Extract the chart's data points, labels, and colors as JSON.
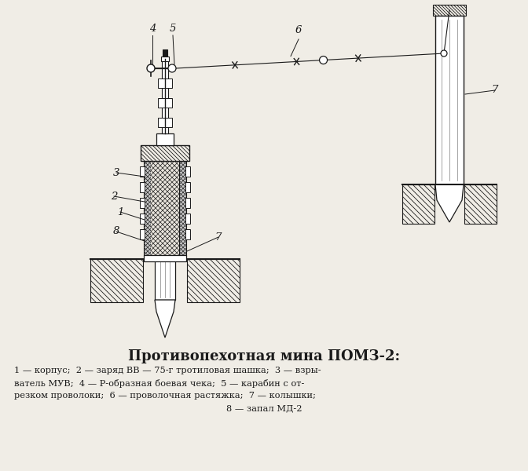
{
  "title": "Противопехотная мина ПОМЗ-2:",
  "caption_line1": "1 — корпус;  2 — заряд ВВ — 75-г тротиловая шашка;  3 — взры-",
  "caption_line2": "ватель МУВ;  4 — Р-образная боевая чека;  5 — карабин с от-",
  "caption_line3": "резком проволоки;  6 — проволочная растяжка;  7 — колышки;",
  "caption_line4": "8 — запал МД-2",
  "bg_color": "#f0ede6",
  "line_color": "#1a1a1a",
  "hatch_color": "#1a1a1a",
  "label_color": "#111111"
}
